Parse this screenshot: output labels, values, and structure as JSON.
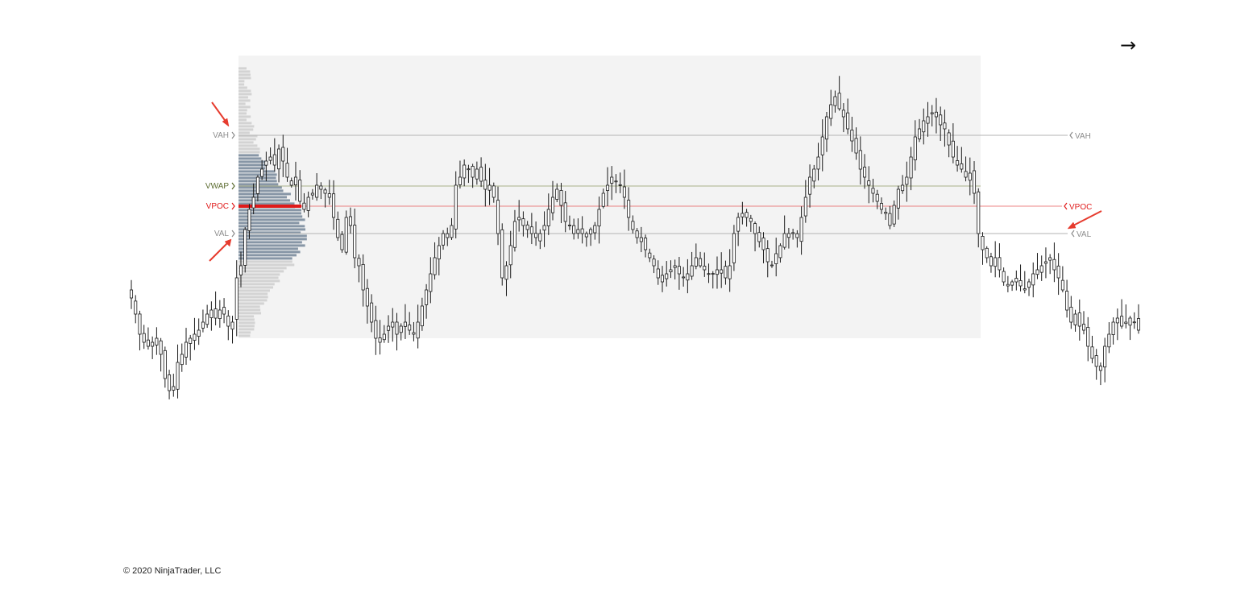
{
  "nav": {
    "next_icon": "arrow-right-icon",
    "next_glyph": "→"
  },
  "footer": {
    "copyright": "© 2020 NinjaTrader, LLC"
  },
  "colors": {
    "profile_fill": "#eeeeee",
    "volume_bar": "#d3d3d3",
    "value_area_bar": "#8796a6",
    "vpoc": "#e01a1a",
    "vwap": "#5b6b2f",
    "level_line": "#a6a6a6",
    "label_gray": "#8c8c8c",
    "arrow": "#e63b2e"
  },
  "levels": {
    "vah": {
      "left_label": "VAH",
      "right_label": "VAH"
    },
    "vwap": {
      "left_label": "VWAP"
    },
    "vpoc": {
      "left_label": "VPOC",
      "right_label": "VPOC"
    },
    "val": {
      "left_label": "VAL",
      "right_label": "VAL"
    }
  },
  "chart_data": {
    "type": "candlestick",
    "title": "",
    "note": "Candlestick chart with session volume profile; price axis not printed. Values in relative price units (0-100, higher = higher price).",
    "grid": false,
    "price_range": [
      0,
      100
    ],
    "levels": {
      "VAH": 76,
      "VWAP": 62,
      "VPOC": 56.5,
      "VAL": 49
    },
    "profile_session_bars": [
      26,
      236
    ],
    "candles_close": [
      40,
      36,
      31,
      29,
      28,
      29,
      30,
      26,
      20,
      17,
      18,
      24,
      26,
      29,
      30,
      31,
      32,
      34,
      36,
      37,
      35,
      37,
      36,
      33,
      34,
      45,
      48,
      57,
      62,
      65,
      70,
      72,
      74,
      75,
      73,
      77,
      74,
      70,
      68,
      70,
      64,
      62,
      65,
      66,
      68,
      67,
      66,
      65,
      60,
      55,
      52,
      60,
      58,
      50,
      48,
      42,
      38,
      34,
      30,
      29,
      31,
      33,
      34,
      31,
      33,
      34,
      32,
      31,
      34,
      38,
      42,
      46,
      50,
      53,
      56,
      55,
      58,
      68,
      70,
      73,
      72,
      70,
      72,
      69,
      67,
      68,
      65,
      56,
      45,
      48,
      53,
      59,
      60,
      58,
      57,
      56,
      55,
      56,
      58,
      62,
      65,
      67,
      63,
      59,
      58,
      56,
      57,
      56,
      56,
      57,
      58,
      62,
      66,
      68,
      70,
      69,
      68,
      65,
      60,
      57,
      55,
      54,
      52,
      50,
      48,
      45,
      44,
      46,
      47,
      48,
      46,
      45,
      46,
      48,
      50,
      48,
      47,
      46,
      46,
      47,
      47,
      45,
      48,
      56,
      60,
      61,
      60,
      59,
      56,
      54,
      52,
      49,
      48,
      51,
      53,
      56,
      56,
      56,
      55,
      60,
      65,
      70,
      72,
      75,
      80,
      85,
      88,
      90,
      87,
      85,
      82,
      79,
      76,
      72,
      70,
      68,
      66,
      64,
      62,
      61,
      58,
      63,
      67,
      68,
      70,
      75,
      80,
      82,
      84,
      85,
      86,
      85,
      83,
      82,
      78,
      75,
      73,
      72,
      70,
      71,
      66,
      56,
      52,
      50,
      48,
      50,
      47,
      44,
      43,
      44,
      44,
      43,
      42,
      44,
      46,
      47,
      48,
      49,
      50,
      47,
      45,
      42,
      37,
      34,
      36,
      33,
      32,
      28,
      25,
      23,
      22,
      28,
      31,
      34,
      35,
      33,
      34,
      35,
      34,
      32
    ]
  }
}
